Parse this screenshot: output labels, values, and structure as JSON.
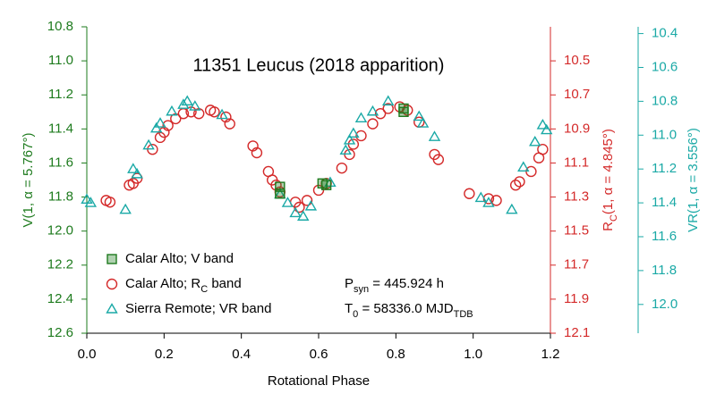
{
  "chart_data": {
    "type": "scatter",
    "title": "11351 Leucus (2018 apparition)",
    "x_label": "Rotational Phase",
    "y_label": "V(1, α = 5.767°)",
    "y2_label": [
      {
        "text": "R"
      },
      {
        "text": "C",
        "sub": true
      },
      {
        "text": "(1, α = 4.845°)"
      }
    ],
    "y3_label": "VR(1, α = 3.556°)",
    "xlim": [
      0,
      1.2
    ],
    "xticks": [
      {
        "value": 0,
        "label": "0.0"
      },
      0.2,
      0.4,
      0.6,
      0.8,
      {
        "value": 1,
        "label": "1.0"
      },
      1.2
    ],
    "ylim": [
      10.8,
      12.6
    ],
    "yticks": [
      10.8,
      {
        "value": 11,
        "label": "11.0"
      },
      11.2,
      11.4,
      11.6,
      11.8,
      {
        "value": 12,
        "label": "12.0"
      },
      12.2,
      12.4,
      12.6
    ],
    "y2lim": [
      10.3,
      12.1
    ],
    "y2ticks": [
      10.5,
      10.7,
      10.9,
      11.1,
      11.3,
      11.5,
      11.7,
      11.9,
      12.1
    ],
    "y3lim": [
      10.36,
      12.17
    ],
    "y3ticks": [
      10.4,
      10.6,
      10.8,
      {
        "value": 11,
        "label": "11.0"
      },
      11.2,
      11.4,
      11.6,
      11.8,
      {
        "value": 12,
        "label": "12.0"
      }
    ],
    "axis_colors": {
      "y": "#1e7b1e",
      "y2": "#d42a2a",
      "y3": "#1aa9a6"
    },
    "inverted": true,
    "series": [
      {
        "name": "Calar Alto; V band",
        "marker": "square",
        "color": "#1e7b1e",
        "axis": "y",
        "x": [
          0.5,
          0.5,
          0.61,
          0.62,
          0.82,
          0.82
        ],
        "values": [
          11.74,
          11.78,
          11.72,
          11.73,
          11.28,
          11.3
        ]
      },
      {
        "name": [
          {
            "text": "Calar Alto; R"
          },
          {
            "text": "C",
            "sub": true
          },
          {
            "text": "  band"
          }
        ],
        "marker": "circle",
        "color": "#d42a2a",
        "axis": "y2",
        "x": [
          0.05,
          0.06,
          0.11,
          0.12,
          0.13,
          0.17,
          0.19,
          0.2,
          0.21,
          0.23,
          0.25,
          0.27,
          0.29,
          0.32,
          0.33,
          0.36,
          0.37,
          0.43,
          0.44,
          0.47,
          0.48,
          0.49,
          0.5,
          0.54,
          0.55,
          0.57,
          0.6,
          0.62,
          0.66,
          0.68,
          0.69,
          0.71,
          0.74,
          0.76,
          0.78,
          0.81,
          0.83,
          0.86,
          0.9,
          0.91,
          0.99,
          1.04,
          1.06,
          1.11,
          1.12,
          1.15,
          1.17,
          1.18
        ],
        "values": [
          11.32,
          11.33,
          11.23,
          11.22,
          11.19,
          11.02,
          10.95,
          10.92,
          10.88,
          10.84,
          10.81,
          10.8,
          10.81,
          10.79,
          10.8,
          10.83,
          10.87,
          11.0,
          11.04,
          11.15,
          11.2,
          11.23,
          11.27,
          11.33,
          11.36,
          11.32,
          11.26,
          11.22,
          11.13,
          11.05,
          10.99,
          10.94,
          10.87,
          10.81,
          10.78,
          10.77,
          10.79,
          10.86,
          11.05,
          11.08,
          11.28,
          11.31,
          11.32,
          11.23,
          11.21,
          11.15,
          11.07,
          11.02
        ]
      },
      {
        "name": "Sierra Remote; VR band",
        "marker": "triangle",
        "color": "#1aa9a6",
        "axis": "y3",
        "x": [
          0.0,
          0.01,
          0.1,
          0.12,
          0.13,
          0.16,
          0.18,
          0.19,
          0.22,
          0.25,
          0.26,
          0.28,
          0.35,
          0.5,
          0.52,
          0.54,
          0.56,
          0.58,
          0.63,
          0.67,
          0.68,
          0.69,
          0.71,
          0.74,
          0.78,
          0.86,
          0.87,
          0.9,
          1.02,
          1.04,
          1.1,
          1.13,
          1.16,
          1.18,
          1.19
        ],
        "values": [
          11.38,
          11.4,
          11.44,
          11.2,
          11.23,
          11.06,
          10.96,
          10.93,
          10.86,
          10.82,
          10.8,
          10.83,
          10.88,
          11.35,
          11.4,
          11.46,
          11.48,
          11.42,
          11.28,
          11.09,
          11.03,
          10.99,
          10.9,
          10.86,
          10.8,
          10.89,
          10.93,
          11.01,
          11.37,
          11.4,
          11.44,
          11.19,
          11.04,
          10.94,
          10.97
        ]
      }
    ],
    "annotations": [
      [
        {
          "text": "P"
        },
        {
          "text": "syn",
          "sub": true
        },
        {
          "text": " = 445.924 h"
        }
      ],
      [
        {
          "text": "T"
        },
        {
          "text": "0",
          "sub": true
        },
        {
          "text": " = 58336.0 MJD"
        },
        {
          "text": "TDB",
          "sub": true
        }
      ]
    ]
  }
}
